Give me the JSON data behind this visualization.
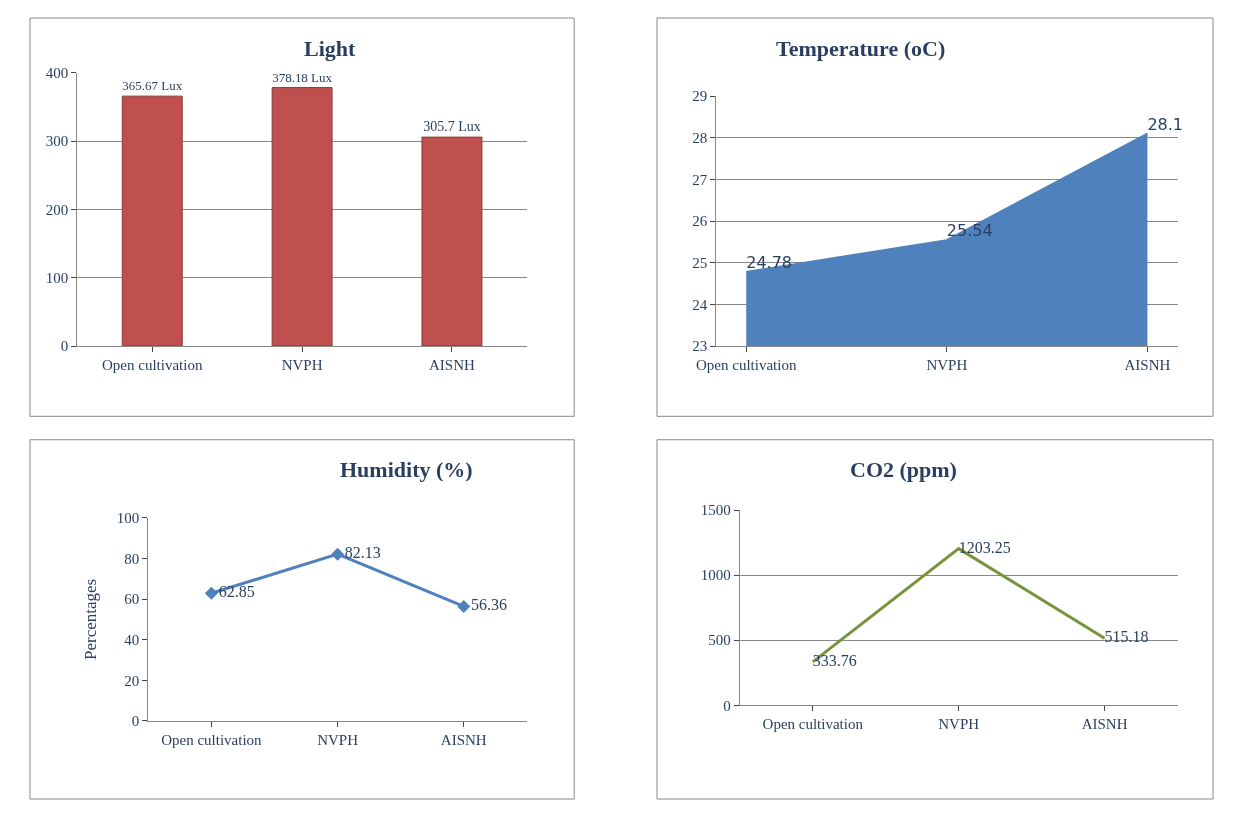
{
  "chart_data": [
    {
      "type": "bar",
      "title": "Light",
      "categories": [
        "Open cultivation",
        "NVPH",
        "AISNH"
      ],
      "values": [
        365.67,
        378.18,
        305.7
      ],
      "value_labels": [
        "365.67 Lux",
        "378.18 Lux",
        "305.7 Lux"
      ],
      "color": "#c0504d",
      "ylim": [
        0,
        400
      ],
      "yticks": [
        0,
        100,
        200,
        300,
        400
      ],
      "grid": "y"
    },
    {
      "type": "area",
      "title": "Temperature (oC)",
      "categories": [
        "Open cultivation",
        "NVPH",
        "AISNH"
      ],
      "values": [
        24.78,
        25.54,
        28.1
      ],
      "color": "#4f81bd",
      "ylim": [
        23,
        29
      ],
      "yticks": [
        23,
        24,
        25,
        26,
        27,
        28,
        29
      ],
      "grid": "y",
      "data_labels": true
    },
    {
      "type": "line",
      "title": "Humidity (%)",
      "ylabel": "Percentages",
      "categories": [
        "Open cultivation",
        "NVPH",
        "AISNH"
      ],
      "values": [
        62.85,
        82.13,
        56.36
      ],
      "color": "#4f81bd",
      "marker": "diamond",
      "ylim": [
        0,
        100
      ],
      "yticks": [
        0,
        20,
        40,
        60,
        80,
        100
      ],
      "data_labels": true
    },
    {
      "type": "line",
      "title": "CO2 (ppm)",
      "categories": [
        "Open cultivation",
        "NVPH",
        "AISNH"
      ],
      "values": [
        333.76,
        1203.25,
        515.18
      ],
      "color": "#77933c",
      "ylim": [
        0,
        1500
      ],
      "yticks": [
        0,
        500,
        1000,
        1500
      ],
      "grid": "y",
      "data_labels": true
    }
  ]
}
